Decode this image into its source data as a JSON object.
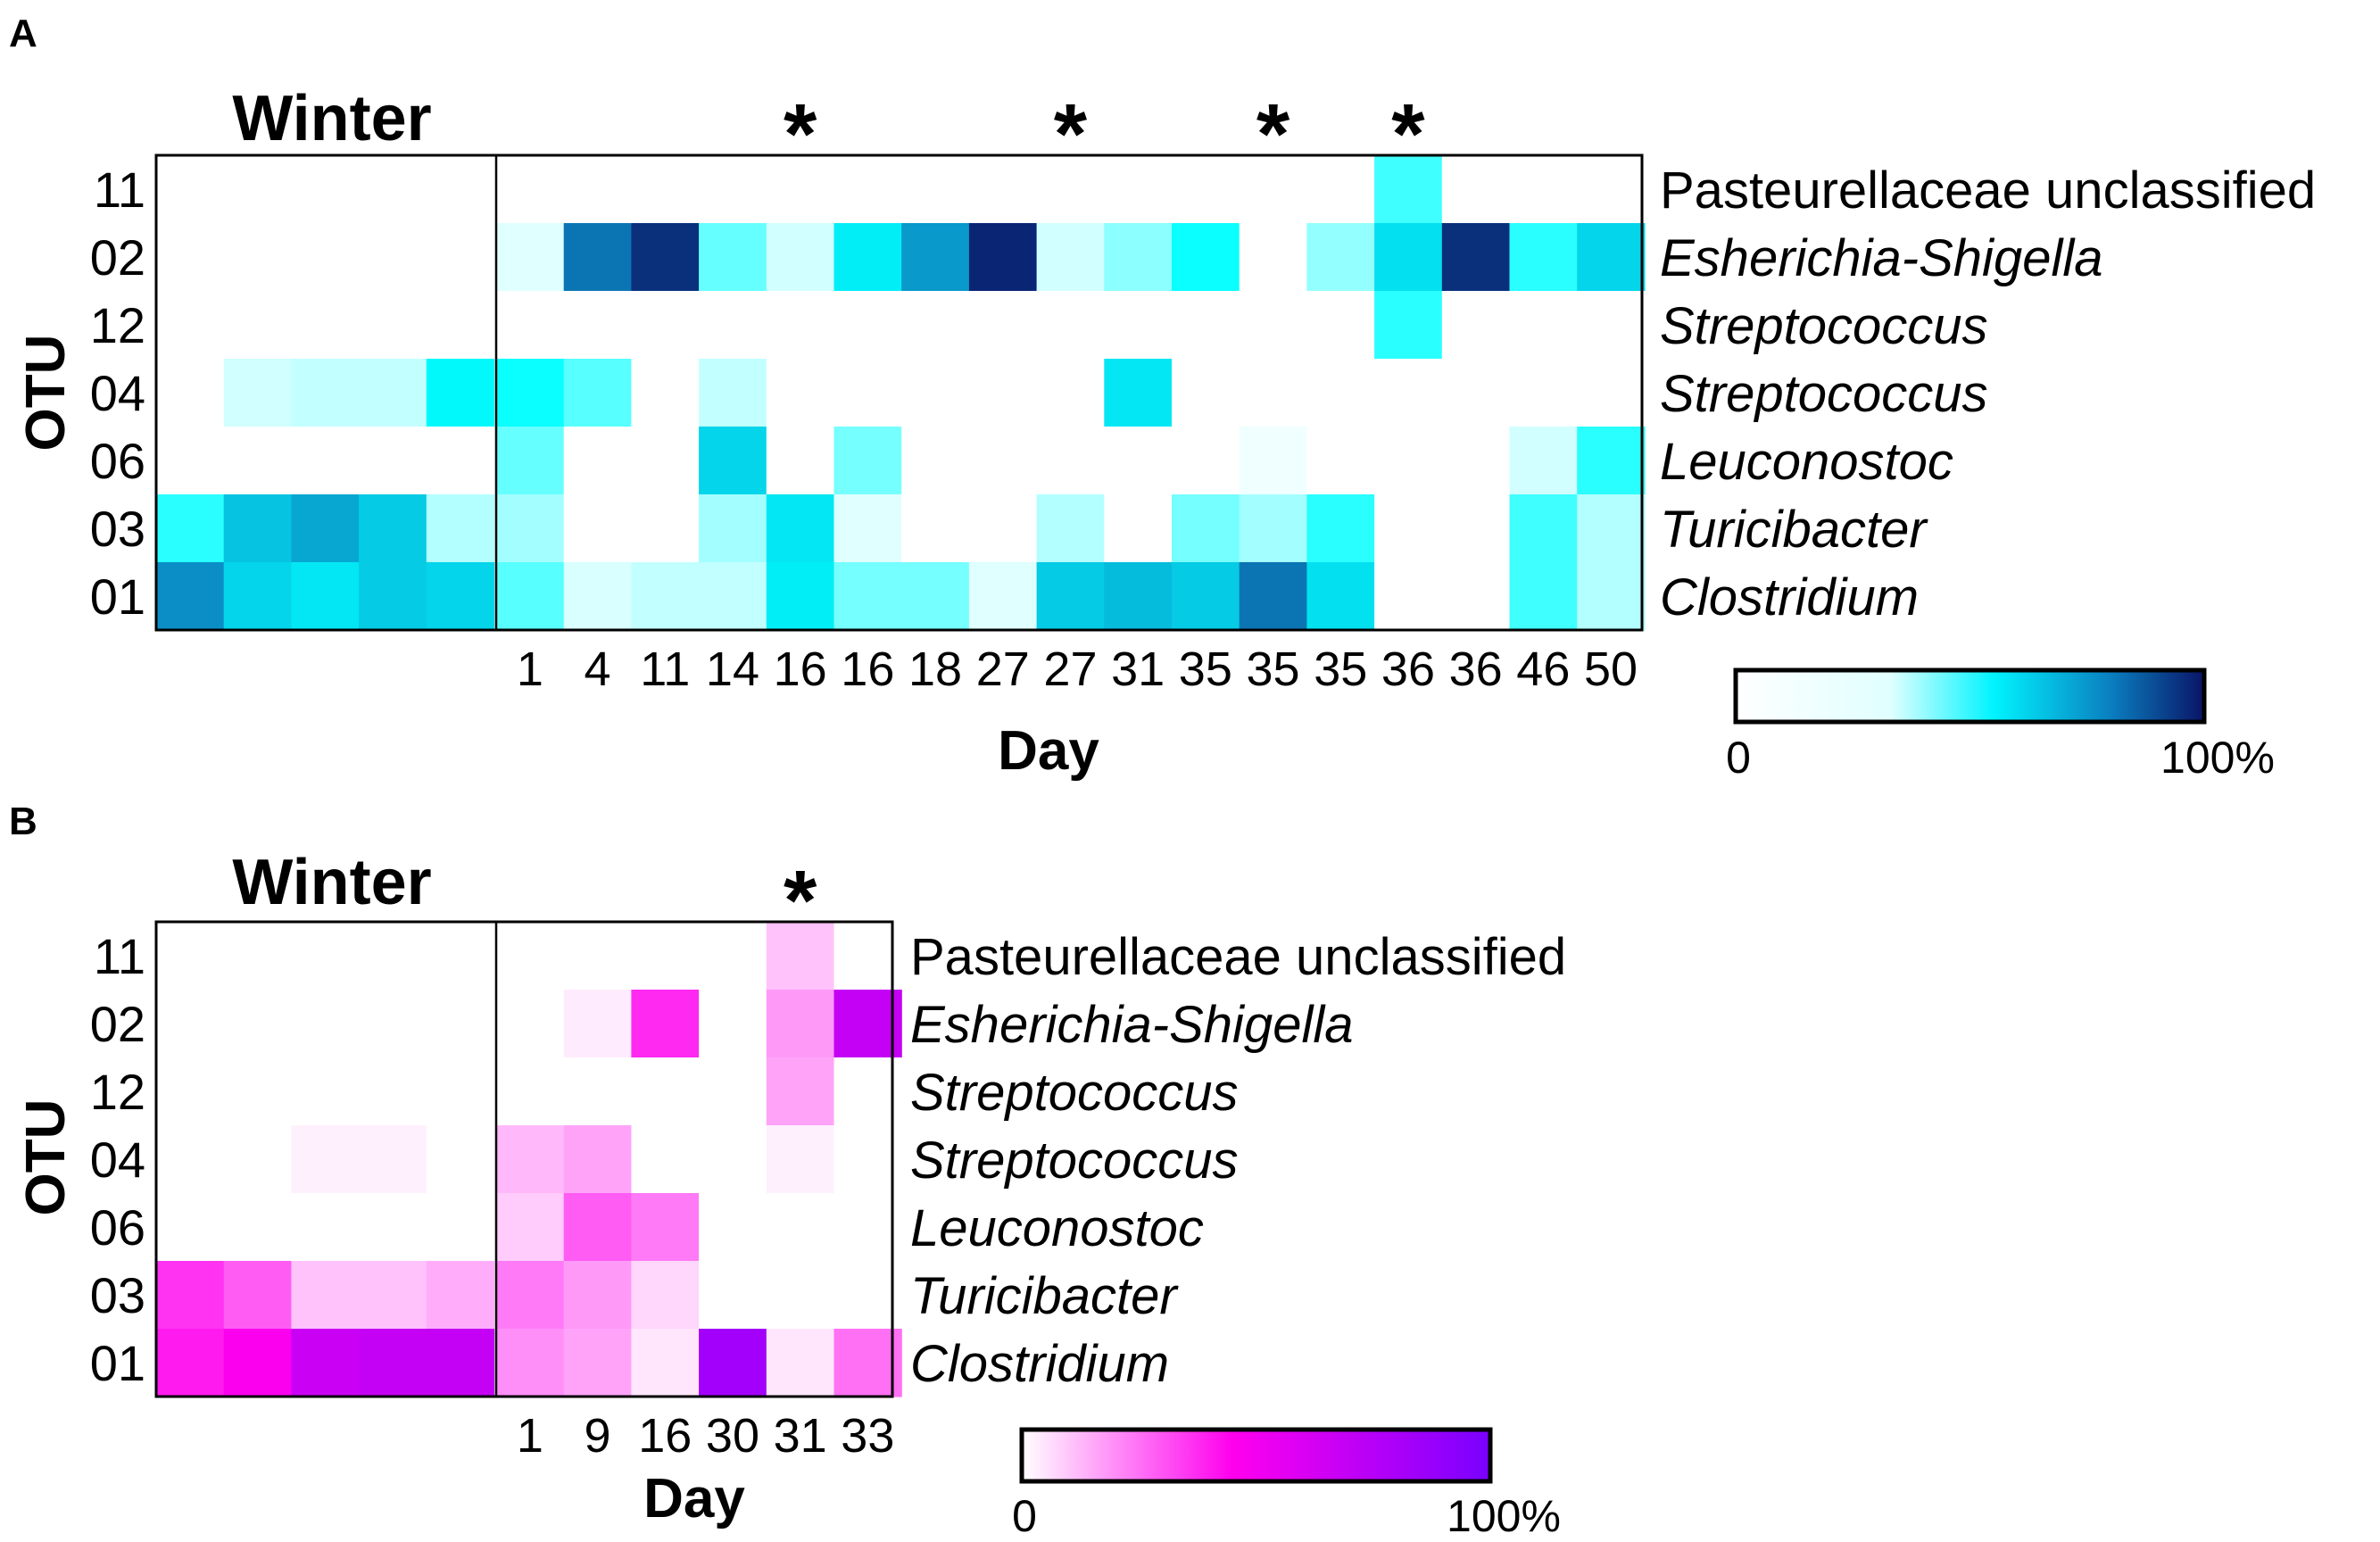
{
  "chart_data": [
    {
      "type": "heatmap",
      "panel_label": "A",
      "season_label": "Winter",
      "ylabel": "OTU",
      "xlabel": "Day",
      "otus": [
        "11",
        "02",
        "12",
        "04",
        "06",
        "03",
        "01"
      ],
      "taxa": [
        "Pasteurellaceae unclassified",
        "Esherichia-Shigella",
        "Streptococcus",
        "Streptococcus",
        "Leuconostoc",
        "Turicibacter",
        "Clostridium"
      ],
      "taxa_italic": [
        false,
        true,
        true,
        true,
        true,
        true,
        true
      ],
      "winter_columns": 5,
      "columns": [
        "",
        "",
        "",
        "",
        "",
        "1",
        "4",
        "11",
        "14",
        "16",
        "16",
        "18",
        "27",
        "27",
        "31",
        "35",
        "35",
        "35",
        "36",
        "36",
        "46",
        "50"
      ],
      "starred_columns": [
        9,
        13,
        16,
        18
      ],
      "values": [
        [
          0,
          0,
          0,
          0,
          0,
          0,
          0,
          0,
          0,
          0,
          0,
          0,
          0,
          0,
          0,
          0,
          0,
          0,
          25,
          0,
          0,
          0
        ],
        [
          0,
          0,
          0,
          0,
          0,
          4,
          72,
          92,
          20,
          6,
          38,
          62,
          95,
          6,
          15,
          32,
          0,
          14,
          42,
          92,
          28,
          45
        ],
        [
          0,
          0,
          0,
          0,
          0,
          0,
          0,
          0,
          0,
          0,
          0,
          0,
          0,
          0,
          0,
          0,
          0,
          0,
          28,
          0,
          0,
          0
        ],
        [
          0,
          6,
          8,
          8,
          35,
          32,
          22,
          0,
          8,
          0,
          0,
          0,
          0,
          0,
          40,
          0,
          0,
          0,
          0,
          0,
          0,
          0
        ],
        [
          0,
          0,
          0,
          0,
          0,
          20,
          0,
          0,
          45,
          0,
          18,
          0,
          0,
          0,
          0,
          0,
          2,
          0,
          0,
          0,
          6,
          28
        ],
        [
          28,
          50,
          58,
          48,
          10,
          12,
          0,
          0,
          12,
          40,
          4,
          0,
          0,
          10,
          0,
          18,
          12,
          28,
          0,
          0,
          25,
          10
        ],
        [
          65,
          45,
          40,
          48,
          45,
          22,
          5,
          8,
          8,
          38,
          18,
          18,
          4,
          48,
          52,
          48,
          72,
          42,
          0,
          0,
          25,
          10
        ]
      ],
      "colorbar": {
        "min_label": "0",
        "max_label": "100%",
        "colors": [
          "#ffffff",
          "#00ffff",
          "#0b88c2",
          "#0a1466"
        ]
      }
    },
    {
      "type": "heatmap",
      "panel_label": "B",
      "season_label": "Winter",
      "ylabel": "OTU",
      "xlabel": "Day",
      "otus": [
        "11",
        "02",
        "12",
        "04",
        "06",
        "03",
        "01"
      ],
      "taxa": [
        "Pasteurellaceae unclassified",
        "Esherichia-Shigella",
        "Streptococcus",
        "Streptococcus",
        "Leuconostoc",
        "Turicibacter",
        "Clostridium"
      ],
      "taxa_italic": [
        false,
        true,
        true,
        true,
        true,
        true,
        true
      ],
      "winter_columns": 5,
      "columns": [
        "",
        "",
        "",
        "",
        "",
        "1",
        "9",
        "16",
        "30",
        "31",
        "33"
      ],
      "starred_columns": [
        9
      ],
      "values": [
        [
          0,
          0,
          0,
          0,
          0,
          0,
          0,
          0,
          0,
          12,
          0
        ],
        [
          0,
          0,
          0,
          0,
          0,
          0,
          4,
          42,
          0,
          20,
          72
        ],
        [
          0,
          0,
          0,
          0,
          0,
          0,
          0,
          0,
          0,
          18,
          0
        ],
        [
          0,
          0,
          3,
          3,
          0,
          14,
          18,
          0,
          0,
          3,
          0
        ],
        [
          0,
          0,
          0,
          0,
          0,
          10,
          32,
          26,
          0,
          0,
          0
        ],
        [
          40,
          32,
          12,
          12,
          16,
          26,
          20,
          8,
          0,
          0,
          0
        ],
        [
          45,
          52,
          70,
          72,
          72,
          22,
          18,
          5,
          85,
          5,
          28
        ]
      ],
      "colorbar": {
        "min_label": "0",
        "max_label": "100%",
        "colors": [
          "#ffffff",
          "#ff00ee",
          "#7a00ff"
        ]
      }
    }
  ]
}
